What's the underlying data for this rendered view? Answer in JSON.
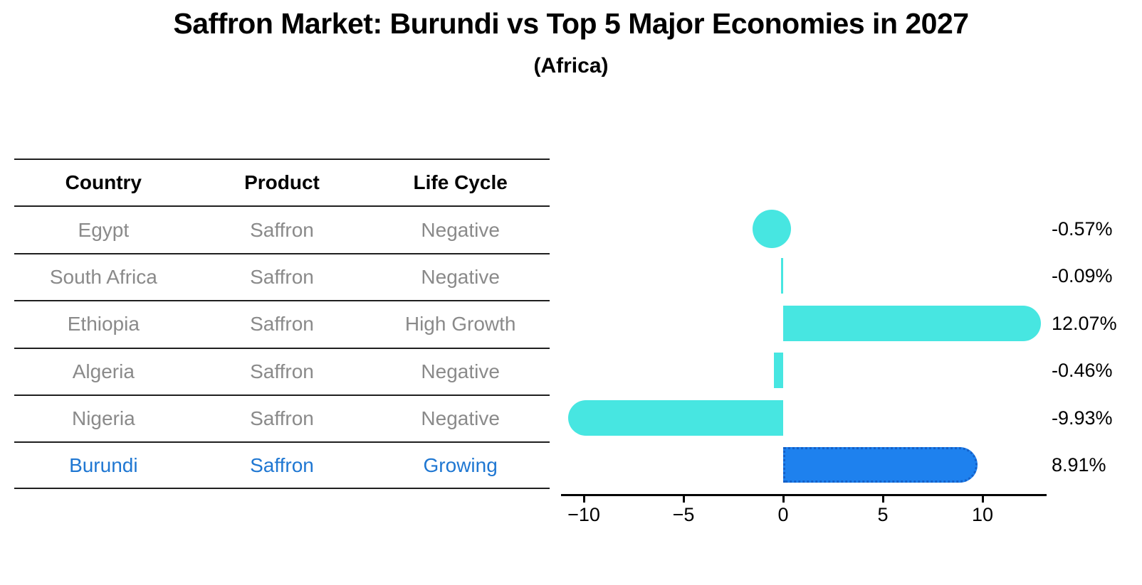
{
  "title": "Saffron Market: Burundi vs Top 5 Major Economies in 2027",
  "subtitle": "(Africa)",
  "table": {
    "headers": [
      "Country",
      "Product",
      "Life Cycle"
    ],
    "rows": [
      {
        "country": "Egypt",
        "product": "Saffron",
        "life_cycle": "Negative",
        "highlight": false
      },
      {
        "country": "South Africa",
        "product": "Saffron",
        "life_cycle": "Negative",
        "highlight": false
      },
      {
        "country": "Ethiopia",
        "product": "Saffron",
        "life_cycle": "High Growth",
        "highlight": false
      },
      {
        "country": "Algeria",
        "product": "Saffron",
        "life_cycle": "Negative",
        "highlight": false
      },
      {
        "country": "Nigeria",
        "product": "Saffron",
        "life_cycle": "Negative",
        "highlight": false
      },
      {
        "country": "Burundi",
        "product": "Saffron",
        "life_cycle": "Growing",
        "highlight": true
      }
    ],
    "text_color": "#8a8a8a",
    "highlight_text_color": "#1f77d2"
  },
  "chart_data": {
    "type": "bar",
    "orientation": "horizontal",
    "categories": [
      "Egypt",
      "South Africa",
      "Ethiopia",
      "Algeria",
      "Nigeria",
      "Burundi"
    ],
    "values": [
      -0.57,
      -0.09,
      12.07,
      -0.46,
      -9.93,
      8.91
    ],
    "value_labels": [
      "-0.57%",
      "-0.09%",
      "12.07%",
      "-0.46%",
      "-9.93%",
      "8.91%"
    ],
    "x_ticks": [
      -10,
      -5,
      0,
      5,
      10
    ],
    "x_tick_labels": [
      "−10",
      "−5",
      "0",
      "5",
      "10"
    ],
    "xlim": [
      -11.2,
      13.2
    ],
    "grid": false,
    "legend": false,
    "bar_color": "#47e6e1",
    "highlight_color": "#1e81ee",
    "highlight_border_color": "#1460c8",
    "highlight_index": 5,
    "bar_shapes": [
      "dot",
      "thin",
      "capsule",
      "thin",
      "capsule",
      "capsule"
    ]
  }
}
